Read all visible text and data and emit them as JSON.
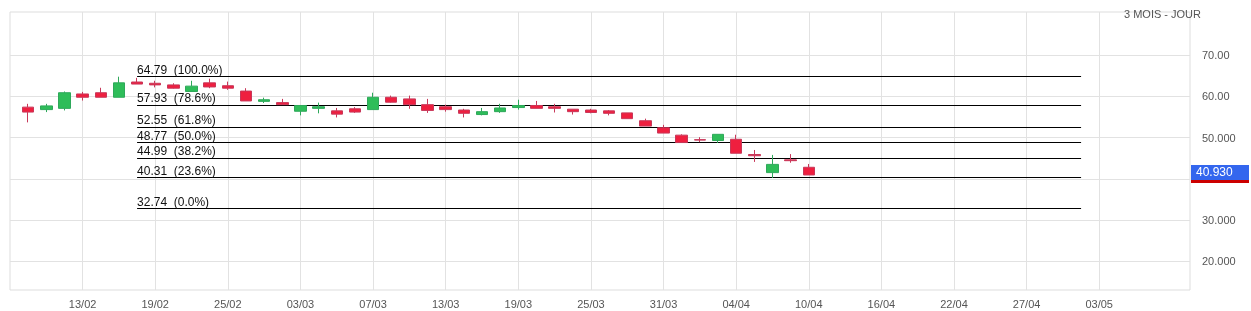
{
  "chart_data": {
    "type": "candlestick",
    "subtitle": "3 MOIS - JOUR",
    "categories": [
      null,
      null,
      null,
      null,
      "13/02",
      null,
      null,
      null,
      "19/02",
      null,
      null,
      null,
      "25/02",
      null,
      null,
      null,
      "03/03",
      null,
      null,
      null,
      "07/03",
      null,
      null,
      null,
      "13/03",
      null,
      null,
      null,
      "19/03",
      null,
      null,
      null,
      "25/03",
      null,
      null,
      null,
      "31/03",
      null,
      null,
      null,
      "04/04",
      null,
      null,
      null,
      "10/04",
      null,
      null,
      null,
      "16/04",
      null,
      null,
      null,
      "22/04",
      null,
      null,
      null,
      "27/04",
      null,
      null,
      null,
      "03/05",
      null,
      null,
      null,
      null,
      null
    ],
    "ohlc": [
      null,
      [
        57.4,
        58.2,
        53.7,
        56.2
      ],
      [
        56.8,
        58.2,
        56.2,
        57.7
      ],
      [
        57.1,
        61.2,
        56.6,
        60.9
      ],
      [
        60.6,
        61.1,
        59.0,
        59.8
      ],
      [
        60.9,
        62.1,
        59.8,
        59.8
      ],
      [
        59.8,
        64.79,
        59.8,
        63.3
      ],
      [
        63.5,
        64.5,
        63.0,
        63.0
      ],
      [
        63.2,
        63.8,
        62.2,
        62.8
      ],
      [
        62.8,
        63.2,
        61.9,
        62.0
      ],
      [
        61.2,
        63.8,
        61.1,
        62.5
      ],
      [
        63.3,
        64.3,
        62.0,
        62.3
      ],
      [
        62.6,
        63.6,
        61.6,
        62.0
      ],
      [
        61.3,
        62.0,
        58.9,
        58.9
      ],
      [
        58.8,
        59.7,
        58.4,
        59.2
      ],
      [
        58.5,
        59.4,
        58.0,
        58.0
      ],
      [
        56.4,
        57.8,
        55.4,
        57.8
      ],
      [
        57.1,
        58.5,
        55.9,
        57.5
      ],
      [
        56.5,
        57.2,
        54.9,
        55.7
      ],
      [
        57.0,
        57.4,
        56.0,
        56.2
      ],
      [
        56.8,
        60.9,
        56.8,
        59.8
      ],
      [
        59.8,
        60.2,
        58.5,
        58.6
      ],
      [
        59.4,
        60.2,
        57.0,
        58.0
      ],
      [
        58.0,
        59.4,
        56.0,
        56.6
      ],
      [
        57.5,
        58.0,
        56.3,
        56.8
      ],
      [
        56.7,
        57.0,
        54.9,
        55.9
      ],
      [
        55.6,
        57.2,
        55.4,
        56.3
      ],
      [
        56.3,
        58.2,
        56.0,
        57.2
      ],
      [
        57.3,
        59.2,
        56.8,
        57.8
      ],
      [
        57.8,
        58.9,
        57.1,
        57.1
      ],
      [
        57.5,
        58.2,
        56.1,
        57.1
      ],
      [
        56.9,
        56.9,
        55.6,
        56.3
      ],
      [
        56.7,
        57.0,
        55.9,
        56.1
      ],
      [
        56.5,
        56.7,
        55.4,
        55.9
      ],
      [
        56.0,
        56.0,
        54.6,
        54.6
      ],
      [
        54.1,
        54.6,
        52.8,
        52.8
      ],
      [
        52.4,
        53.1,
        51.1,
        51.1
      ],
      [
        50.6,
        50.8,
        48.8,
        48.8
      ],
      [
        49.5,
        50.1,
        48.9,
        49.4
      ],
      [
        49.3,
        50.8,
        48.7,
        50.8
      ],
      [
        49.6,
        50.7,
        46.2,
        46.2
      ],
      [
        45.9,
        47.0,
        44.1,
        45.6
      ],
      [
        41.5,
        45.8,
        40.2,
        43.5
      ],
      [
        44.6,
        46.0,
        43.9,
        44.4
      ],
      [
        42.8,
        43.6,
        40.93,
        40.93
      ],
      null,
      null,
      null,
      null,
      null,
      null,
      null,
      null,
      null,
      null,
      null,
      null,
      null,
      null,
      null,
      null,
      null,
      null,
      null,
      null,
      null
    ],
    "ylim": [
      13,
      80.5
    ],
    "yticks": [
      {
        "value": 20,
        "label": "20.000"
      },
      {
        "value": 30,
        "label": "30.000"
      },
      {
        "value": 40,
        "label": null
      },
      {
        "value": 50,
        "label": "50.000"
      },
      {
        "value": 60,
        "label": "60.00"
      },
      {
        "value": 70,
        "label": "70.00"
      }
    ],
    "grid": true,
    "ref_lines": [
      {
        "axis": "y",
        "value": 64.79,
        "label": "64.79  (100.0%)",
        "color": "#000000"
      },
      {
        "axis": "y",
        "value": 57.93,
        "label": "57.93  (78.6%)",
        "color": "#000000"
      },
      {
        "axis": "y",
        "value": 52.55,
        "label": "52.55  (61.8%)",
        "color": "#000000"
      },
      {
        "axis": "y",
        "value": 48.77,
        "label": "48.77  (50.0%)",
        "color": "#000000"
      },
      {
        "axis": "y",
        "value": 44.99,
        "label": "44.99  (38.2%)",
        "color": "#000000"
      },
      {
        "axis": "y",
        "value": 40.31,
        "label": "40.31  (23.6%)",
        "color": "#000000"
      },
      {
        "axis": "y",
        "value": 32.74,
        "label": "32.74  (0.0%)",
        "color": "#000000"
      }
    ],
    "annotations": [
      "40.930"
    ]
  }
}
